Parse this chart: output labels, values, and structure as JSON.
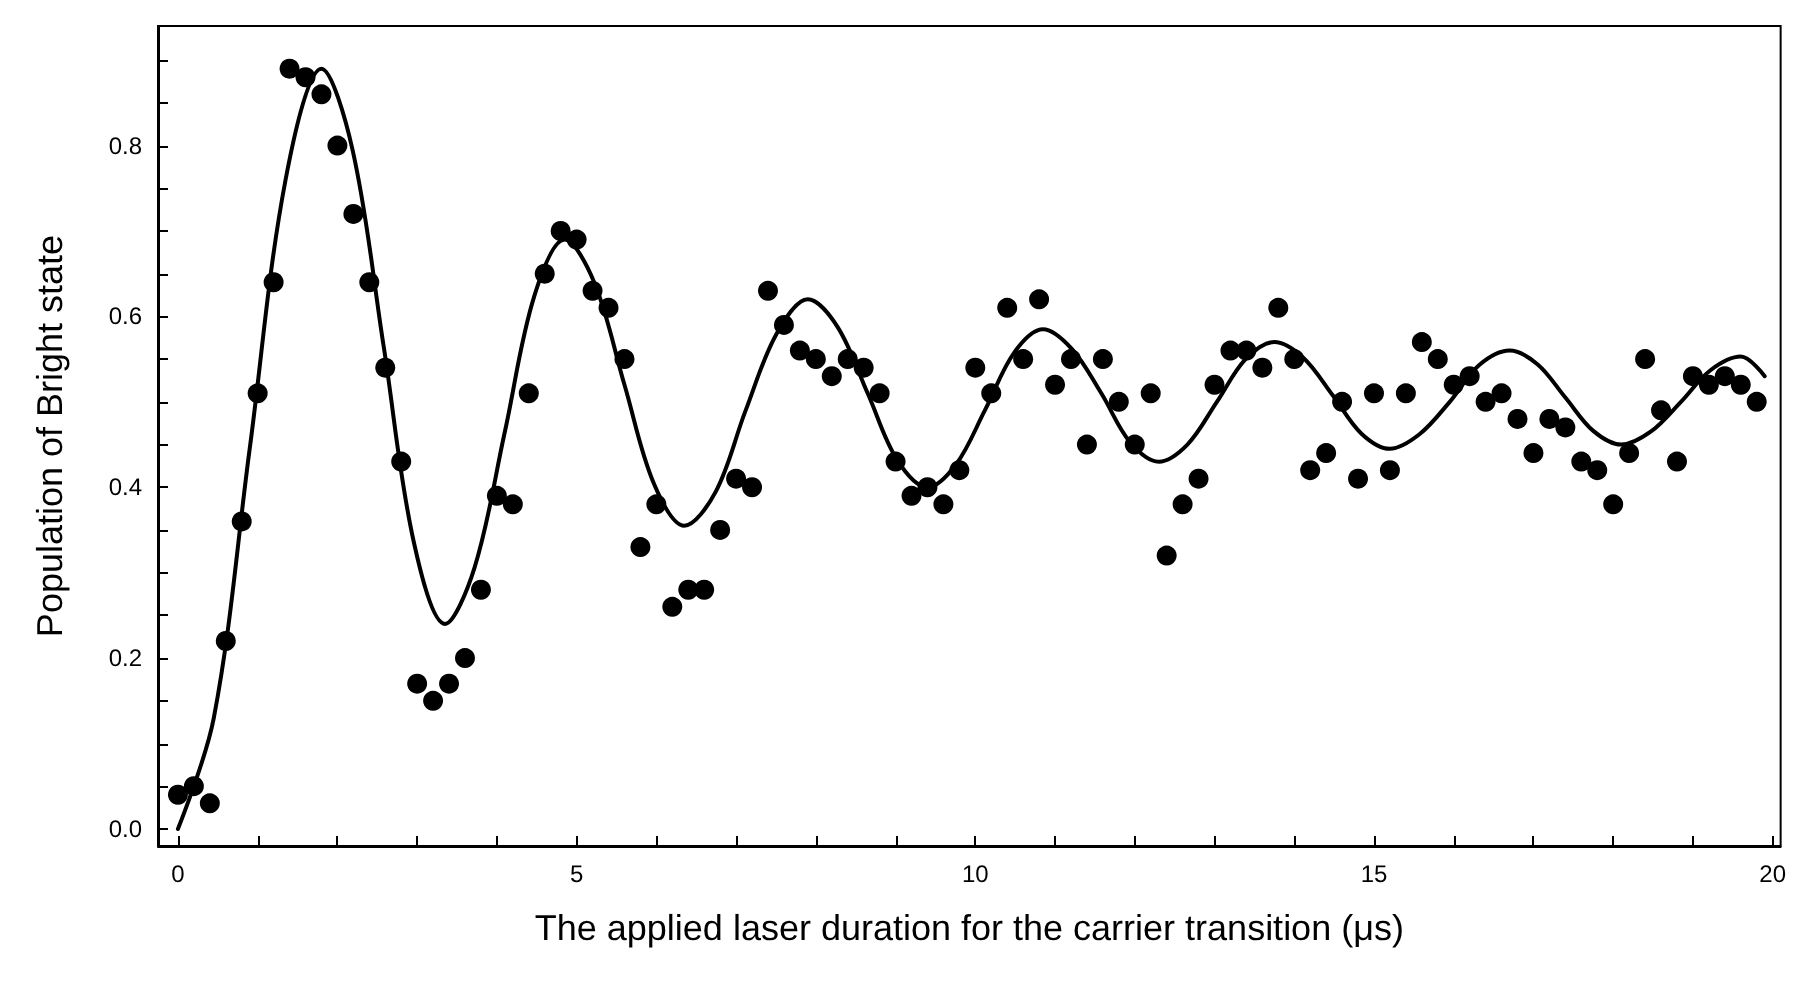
{
  "chart_data": {
    "type": "scatter",
    "xlabel": "The applied laser duration for the carrier transition (μs)",
    "ylabel": "Population of Bright state",
    "xlim": [
      -0.25,
      20.1
    ],
    "ylim": [
      -0.02,
      0.94
    ],
    "xticks": [
      0,
      {
        "value": 1,
        "label": null
      },
      {
        "value": 2,
        "label": null
      },
      {
        "value": 3,
        "label": null
      },
      {
        "value": 4,
        "label": null
      },
      5,
      {
        "value": 6,
        "label": null
      },
      {
        "value": 7,
        "label": null
      },
      {
        "value": 8,
        "label": null
      },
      {
        "value": 9,
        "label": null
      },
      10,
      {
        "value": 11,
        "label": null
      },
      {
        "value": 12,
        "label": null
      },
      {
        "value": 13,
        "label": null
      },
      {
        "value": 14,
        "label": null
      },
      15,
      {
        "value": 16,
        "label": null
      },
      {
        "value": 17,
        "label": null
      },
      {
        "value": 18,
        "label": null
      },
      {
        "value": 19,
        "label": null
      },
      20
    ],
    "yticks": [
      {
        "value": 0,
        "label": "0.0"
      },
      {
        "value": 0.05,
        "label": null
      },
      {
        "value": 0.1,
        "label": null
      },
      {
        "value": 0.15,
        "label": null
      },
      {
        "value": 0.2,
        "label": "0.2"
      },
      {
        "value": 0.25,
        "label": null
      },
      {
        "value": 0.3,
        "label": null
      },
      {
        "value": 0.35,
        "label": null
      },
      {
        "value": 0.4,
        "label": "0.4"
      },
      {
        "value": 0.45,
        "label": null
      },
      {
        "value": 0.5,
        "label": null
      },
      {
        "value": 0.55,
        "label": null
      },
      {
        "value": 0.6,
        "label": "0.6"
      },
      {
        "value": 0.65,
        "label": null
      },
      {
        "value": 0.7,
        "label": null
      },
      {
        "value": 0.75,
        "label": null
      },
      {
        "value": 0.8,
        "label": "0.8"
      },
      {
        "value": 0.85,
        "label": null
      },
      {
        "value": 0.9,
        "label": null
      }
    ],
    "grid": false,
    "series": [
      {
        "color": "#000000",
        "marker": "circle",
        "x": [
          0,
          0.2,
          0.4,
          0.6,
          0.8,
          1.0,
          1.2,
          1.4,
          1.6,
          1.8,
          2.0,
          2.2,
          2.4,
          2.6,
          2.8,
          3.0,
          3.2,
          3.4,
          3.6,
          3.8,
          4.0,
          4.2,
          4.4,
          4.6,
          4.8,
          5.0,
          5.2,
          5.4,
          5.6,
          5.8,
          6.0,
          6.2,
          6.4,
          6.6,
          6.8,
          7.0,
          7.2,
          7.4,
          7.6,
          7.8,
          8.0,
          8.2,
          8.4,
          8.6,
          8.8,
          9.0,
          9.2,
          9.4,
          9.6,
          9.8,
          10.0,
          10.2,
          10.4,
          10.6,
          10.8,
          11.0,
          11.2,
          11.4,
          11.6,
          11.8,
          12.0,
          12.2,
          12.4,
          12.6,
          12.8,
          13.0,
          13.2,
          13.4,
          13.6,
          13.8,
          14.0,
          14.2,
          14.4,
          14.6,
          14.8,
          15.0,
          15.2,
          15.4,
          15.6,
          15.8,
          16.0,
          16.2,
          16.4,
          16.6,
          16.8,
          17.0,
          17.2,
          17.4,
          17.6,
          17.8,
          18.0,
          18.2,
          18.4,
          18.6,
          18.8,
          19.0,
          19.2,
          19.4,
          19.6,
          19.8
        ],
        "values": [
          0.04,
          0.05,
          0.03,
          0.22,
          0.36,
          0.51,
          0.64,
          0.89,
          0.88,
          0.86,
          0.8,
          0.72,
          0.64,
          0.54,
          0.43,
          0.17,
          0.15,
          0.17,
          0.2,
          0.28,
          0.39,
          0.38,
          0.51,
          0.65,
          0.7,
          0.69,
          0.63,
          0.61,
          0.55,
          0.33,
          0.38,
          0.26,
          0.28,
          0.28,
          0.35,
          0.41,
          0.4,
          0.63,
          0.59,
          0.56,
          0.55,
          0.53,
          0.55,
          0.54,
          0.51,
          0.43,
          0.39,
          0.4,
          0.38,
          0.42,
          0.54,
          0.51,
          0.61,
          0.55,
          0.62,
          0.52,
          0.55,
          0.45,
          0.55,
          0.5,
          0.45,
          0.51,
          0.32,
          0.38,
          0.41,
          0.52,
          0.56,
          0.56,
          0.54,
          0.61,
          0.55,
          0.42,
          0.44,
          0.5,
          0.41,
          0.51,
          0.42,
          0.51,
          0.57,
          0.55,
          0.52,
          0.53,
          0.5,
          0.51,
          0.48,
          0.44,
          0.48,
          0.47,
          0.43,
          0.42,
          0.38,
          0.44,
          0.55,
          0.49,
          0.43,
          0.53,
          0.52,
          0.53,
          0.52,
          0.5
        ]
      },
      {
        "type": "line",
        "color": "#000000",
        "marker": "none",
        "line_style": "solid",
        "x": [
          0,
          0.45,
          0.9,
          1.35,
          1.8,
          2.19,
          2.58,
          2.96,
          3.35,
          3.72,
          4.1,
          4.47,
          4.85,
          5.22,
          5.6,
          5.97,
          6.35,
          6.74,
          7.12,
          7.51,
          7.9,
          8.27,
          8.65,
          9.02,
          9.4,
          9.76,
          10.12,
          10.49,
          10.85,
          11.21,
          11.58,
          11.94,
          12.3,
          12.66,
          13.03,
          13.39,
          13.75,
          14.11,
          14.48,
          14.84,
          15.2,
          15.57,
          15.95,
          16.32,
          16.7,
          17.05,
          17.4,
          17.75,
          18.1,
          18.47,
          18.85,
          19.22,
          19.6,
          19.9
        ],
        "values": [
          0.0,
          0.13,
          0.445,
          0.76,
          0.89,
          0.795,
          0.565,
          0.335,
          0.24,
          0.306,
          0.465,
          0.624,
          0.69,
          0.64,
          0.52,
          0.404,
          0.355,
          0.394,
          0.49,
          0.58,
          0.62,
          0.588,
          0.51,
          0.432,
          0.4,
          0.427,
          0.49,
          0.558,
          0.585,
          0.562,
          0.51,
          0.453,
          0.43,
          0.45,
          0.5,
          0.55,
          0.57,
          0.552,
          0.508,
          0.463,
          0.445,
          0.462,
          0.5,
          0.543,
          0.56,
          0.544,
          0.505,
          0.466,
          0.45,
          0.465,
          0.5,
          0.537,
          0.553,
          0.53
        ]
      }
    ]
  }
}
